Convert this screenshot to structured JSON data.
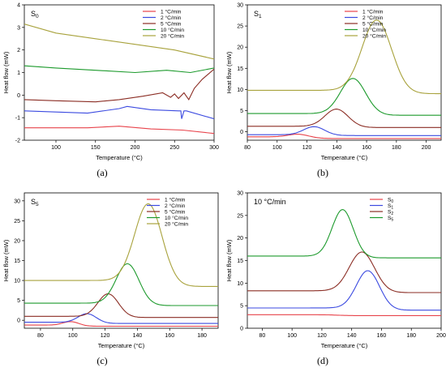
{
  "chart_data": [
    {
      "type": "line",
      "panel": "(a)",
      "title": "S0",
      "xlabel": "Temperature (°C)",
      "ylabel": "Heat flow (mW)",
      "xlim": [
        60,
        300
      ],
      "ylim": [
        -2,
        4
      ],
      "xticks": [
        100,
        150,
        200,
        250,
        300
      ],
      "yticks": [
        -2,
        -1,
        0,
        1,
        2,
        3,
        4
      ],
      "legend_position": "top-right",
      "series": [
        {
          "name": "1 °C/min",
          "color": "#e8434b",
          "x": [
            60,
            100,
            140,
            180,
            220,
            260,
            300
          ],
          "y": [
            -1.45,
            -1.45,
            -1.45,
            -1.38,
            -1.5,
            -1.55,
            -1.7
          ]
        },
        {
          "name": "2 °C/min",
          "color": "#3b4ae0",
          "x": [
            60,
            100,
            140,
            180,
            190,
            220,
            255,
            258,
            259,
            262,
            265,
            300
          ],
          "y": [
            -0.7,
            -0.75,
            -0.8,
            -0.6,
            -0.5,
            -0.65,
            -0.7,
            -0.7,
            -1.05,
            -0.7,
            -0.7,
            -1.05
          ]
        },
        {
          "name": "5 °C/min",
          "color": "#8b2d24",
          "x": [
            60,
            100,
            150,
            180,
            210,
            235,
            245,
            250,
            255,
            262,
            268,
            275,
            285,
            300
          ],
          "y": [
            -0.2,
            -0.25,
            -0.3,
            -0.2,
            -0.05,
            0.1,
            -0.1,
            0.05,
            -0.15,
            0.1,
            -0.2,
            0.3,
            0.7,
            1.15
          ]
        },
        {
          "name": "10 °C/min",
          "color": "#1c9a2c",
          "x": [
            60,
            100,
            150,
            200,
            240,
            270,
            300
          ],
          "y": [
            1.3,
            1.2,
            1.1,
            1.0,
            1.1,
            1.0,
            1.2
          ]
        },
        {
          "name": "20 °C/min",
          "color": "#a8a23c",
          "x": [
            60,
            100,
            150,
            200,
            250,
            300
          ],
          "y": [
            3.15,
            2.75,
            2.5,
            2.25,
            2.0,
            1.6
          ]
        }
      ]
    },
    {
      "type": "line",
      "panel": "(b)",
      "title": "S1",
      "xlabel": "Temperature (°C)",
      "ylabel": "Heat flow (mW)",
      "xlim": [
        80,
        210
      ],
      "ylim": [
        -2,
        30
      ],
      "xticks": [
        80,
        100,
        120,
        140,
        160,
        180,
        200
      ],
      "yticks": [
        0,
        5,
        10,
        15,
        20,
        25,
        30
      ],
      "legend_position": "top-left",
      "series": [
        {
          "name": "1 °C/min",
          "color": "#e8434b",
          "peak": 115,
          "base": -1.2,
          "height": 0.8,
          "width": 10,
          "tail": -0.4
        },
        {
          "name": "2 °C/min",
          "color": "#3b4ae0",
          "peak": 125,
          "base": -0.7,
          "height": 2.0,
          "width": 10,
          "tail": -0.2
        },
        {
          "name": "5 °C/min",
          "color": "#8b2d24",
          "peak": 140,
          "base": 1.3,
          "height": 4.2,
          "width": 11,
          "tail": -0.3
        },
        {
          "name": "10 °C/min",
          "color": "#1c9a2c",
          "peak": 151,
          "base": 4.3,
          "height": 8.5,
          "width": 12,
          "tail": -0.4
        },
        {
          "name": "20 °C/min",
          "color": "#a8a23c",
          "peak": 167,
          "base": 9.8,
          "height": 17.0,
          "width": 14,
          "tail": -0.8
        }
      ]
    },
    {
      "type": "line",
      "panel": "(c)",
      "title": "S5",
      "xlabel": "Temperature (°C)",
      "ylabel": "Heat flow (mW)",
      "xlim": [
        70,
        190
      ],
      "ylim": [
        -2,
        32
      ],
      "xticks": [
        80,
        100,
        120,
        140,
        160,
        180
      ],
      "yticks": [
        0,
        5,
        10,
        15,
        20,
        25,
        30
      ],
      "legend_position": "top-right",
      "series": [
        {
          "name": "1 °C/min",
          "color": "#e8434b",
          "peak": 99,
          "base": -1.2,
          "height": 1.0,
          "width": 7,
          "tail": -0.3
        },
        {
          "name": "2 °C/min",
          "color": "#3b4ae0",
          "peak": 109,
          "base": -0.5,
          "height": 2.3,
          "width": 8,
          "tail": -0.3
        },
        {
          "name": "5 °C/min",
          "color": "#8b2d24",
          "peak": 122,
          "base": 1.0,
          "height": 5.8,
          "width": 9,
          "tail": -0.3
        },
        {
          "name": "10 °C/min",
          "color": "#1c9a2c",
          "peak": 134,
          "base": 4.3,
          "height": 10.2,
          "width": 10,
          "tail": -0.6
        },
        {
          "name": "20 °C/min",
          "color": "#a8a23c",
          "peak": 147,
          "base": 10.0,
          "height": 20.0,
          "width": 12,
          "tail": -1.5
        }
      ]
    },
    {
      "type": "line",
      "panel": "(d)",
      "title": "10 °C/min",
      "xlabel": "Temperature (°C)",
      "ylabel": "Heat flow (mW)",
      "xlim": [
        70,
        200
      ],
      "ylim": [
        0,
        30
      ],
      "xticks": [
        80,
        100,
        120,
        140,
        160,
        180,
        200
      ],
      "yticks": [
        0,
        5,
        10,
        15,
        20,
        25,
        30
      ],
      "legend_position": "top-right",
      "series": [
        {
          "name": "S0",
          "color": "#e8434b",
          "peak": 130,
          "base": 3.0,
          "height": 0.0,
          "width": 10,
          "tail": -0.2
        },
        {
          "name": "S1",
          "color": "#3b4ae0",
          "peak": 151,
          "base": 4.5,
          "height": 8.5,
          "width": 11,
          "tail": -0.5
        },
        {
          "name": "S2",
          "color": "#8b2d24",
          "peak": 147,
          "base": 8.3,
          "height": 8.8,
          "width": 12,
          "tail": -0.4
        },
        {
          "name": "S5",
          "color": "#1c9a2c",
          "peak": 134,
          "base": 16.0,
          "height": 10.5,
          "width": 10,
          "tail": -0.4
        }
      ]
    }
  ],
  "captions": [
    "(a)",
    "(b)",
    "(c)",
    "(d)"
  ]
}
